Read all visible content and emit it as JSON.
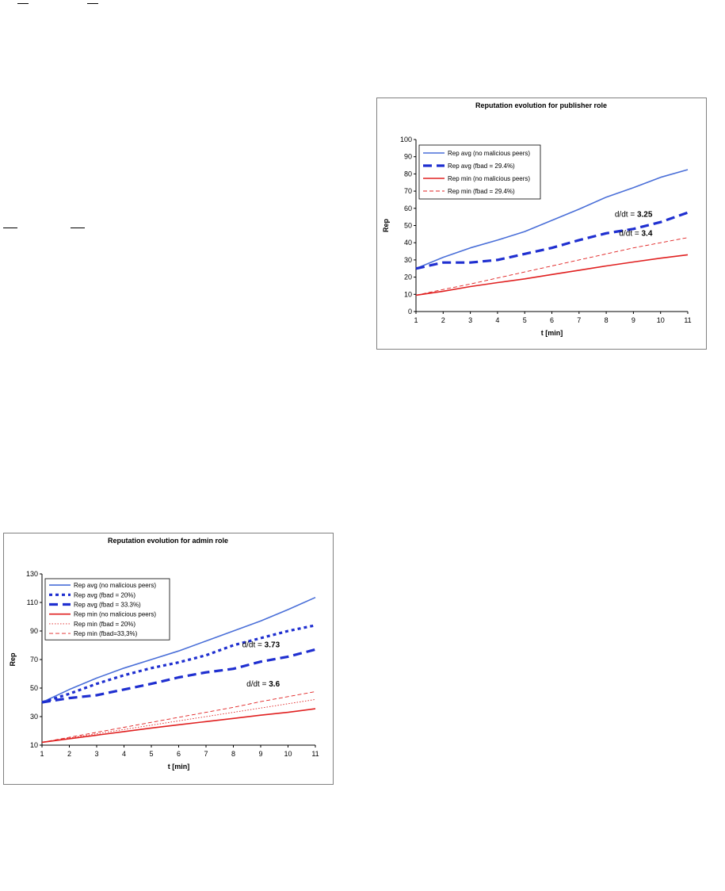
{
  "chart_data": [
    {
      "type": "line",
      "title": "Reputation evolution for publisher role",
      "xlabel": "t [min]",
      "ylabel": "Rep",
      "xlim": [
        1,
        11
      ],
      "ylim": [
        0,
        100
      ],
      "x_ticks": [
        1,
        2,
        3,
        4,
        5,
        6,
        7,
        8,
        9,
        10,
        11
      ],
      "y_ticks": [
        0,
        10,
        20,
        30,
        40,
        50,
        60,
        70,
        80,
        90,
        100
      ],
      "grid": false,
      "legend_position": "top-left",
      "x": [
        1,
        2,
        3,
        4,
        5,
        6,
        7,
        8,
        9,
        10,
        11
      ],
      "series": [
        {
          "name": "Rep avg (no malicious peers)",
          "color": "#4a6fd8",
          "style": "solid",
          "values": [
            25,
            31.5,
            37,
            41.5,
            46.5,
            53,
            59.5,
            66.5,
            72,
            78,
            82.5
          ]
        },
        {
          "name": "Rep avg (fbad = 29.4%)",
          "color": "#1f2fd0",
          "style": "longdash-bold",
          "values": [
            25,
            28.5,
            28.5,
            30,
            33.5,
            37,
            41.5,
            45.5,
            48,
            52,
            57.5
          ]
        },
        {
          "name": "Rep min (no malicious peers)",
          "color": "#e02020",
          "style": "solid",
          "values": [
            9.5,
            11.8,
            14.5,
            16.8,
            19,
            21.5,
            24,
            26.5,
            28.8,
            31,
            33
          ]
        },
        {
          "name": "Rep min (fbad = 29.4%)",
          "color": "#e02020",
          "style": "dash-thin",
          "values": [
            9.5,
            12.8,
            16,
            19.5,
            23,
            26.5,
            30,
            33.5,
            37,
            40,
            43
          ]
        }
      ],
      "annotations": [
        {
          "prefix": "d/dt = ",
          "value": "3.25",
          "x": 9.7,
          "y": 55
        },
        {
          "prefix": "d/dt = ",
          "value": "3.4",
          "x": 9.7,
          "y": 44
        }
      ]
    },
    {
      "type": "line",
      "title": "Reputation evolution for admin role",
      "xlabel": "t [min]",
      "ylabel": "Rep",
      "xlim": [
        1,
        11
      ],
      "ylim": [
        10,
        130
      ],
      "x_ticks": [
        1,
        2,
        3,
        4,
        5,
        6,
        7,
        8,
        9,
        10,
        11
      ],
      "y_ticks": [
        10,
        30,
        50,
        70,
        90,
        110,
        130
      ],
      "grid": false,
      "legend_position": "top-left",
      "x": [
        1,
        2,
        3,
        4,
        5,
        6,
        7,
        8,
        9,
        10,
        11
      ],
      "series": [
        {
          "name": "Rep avg (no malicious peers)",
          "color": "#4a6fd8",
          "style": "solid",
          "values": [
            40,
            49,
            57,
            64,
            70,
            76,
            83,
            90,
            97,
            105,
            113.5
          ]
        },
        {
          "name": "Rep avg (fbad = 20%)",
          "color": "#1f2fd0",
          "style": "dot-bold",
          "values": [
            40,
            46,
            53,
            59,
            64,
            68,
            73,
            80,
            85,
            90,
            94
          ]
        },
        {
          "name": "Rep avg (fbad = 33.3%)",
          "color": "#1f2fd0",
          "style": "longdash-bold",
          "values": [
            40,
            43,
            45,
            49,
            53,
            57.5,
            61,
            63.5,
            68.5,
            72,
            77
          ]
        },
        {
          "name": "Rep min (no malicious peers)",
          "color": "#e02020",
          "style": "solid",
          "values": [
            12,
            14.5,
            17,
            19.5,
            22,
            24.3,
            26.5,
            28.7,
            31,
            33,
            35.5
          ]
        },
        {
          "name": "Rep min (fbad = 20%)",
          "color": "#e02020",
          "style": "dot-thin",
          "values": [
            12,
            15,
            18,
            21,
            24,
            27,
            30,
            33,
            36,
            39,
            42
          ]
        },
        {
          "name": "Rep min (fbad=33,3%)",
          "color": "#e02020",
          "style": "dash-thin",
          "values": [
            12,
            15.5,
            19,
            22.5,
            26,
            29.5,
            33,
            36.5,
            40.5,
            44,
            47.5
          ]
        }
      ],
      "annotations": [
        {
          "prefix": "d/dt = ",
          "value": "3.73",
          "x": 9.7,
          "y": 78.5
        },
        {
          "prefix": "d/dt = ",
          "value": "3.6",
          "x": 9.7,
          "y": 51
        }
      ]
    }
  ]
}
